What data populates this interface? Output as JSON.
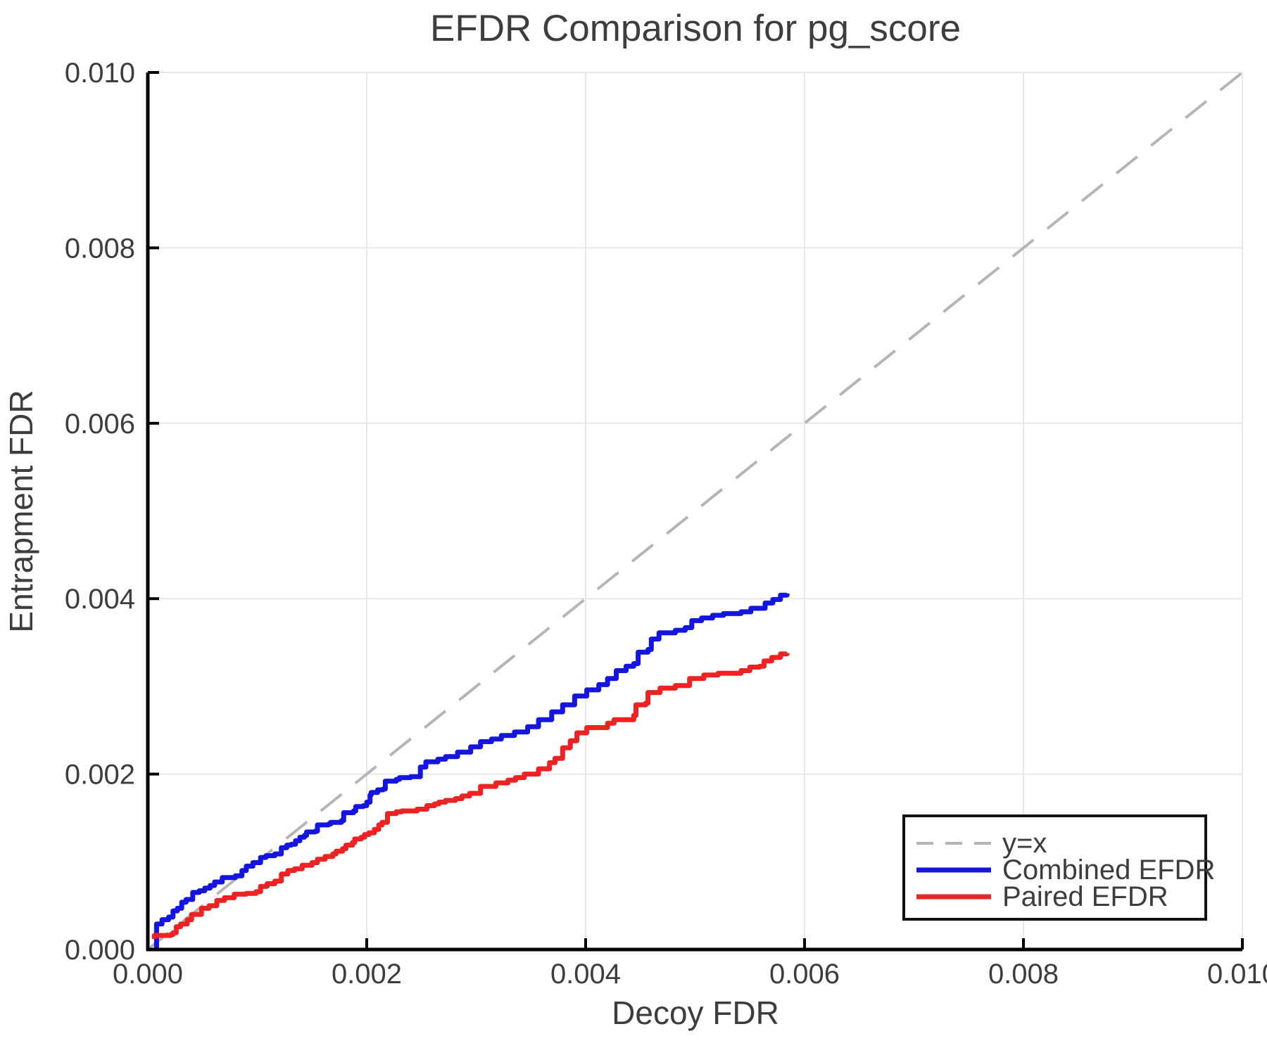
{
  "chart_data": {
    "type": "line",
    "title": "EFDR Comparison for pg_score",
    "xlabel": "Decoy FDR",
    "ylabel": "Entrapment FDR",
    "xlim": [
      0.0,
      0.01
    ],
    "ylim": [
      0.0,
      0.01
    ],
    "grid": true,
    "x_ticks": {
      "values": [
        0.0,
        0.002,
        0.004,
        0.006,
        0.008,
        0.01
      ],
      "labels": [
        "0.000",
        "0.002",
        "0.004",
        "0.006",
        "0.008",
        "0.010"
      ]
    },
    "y_ticks": {
      "values": [
        0.0,
        0.002,
        0.004,
        0.006,
        0.008,
        0.01
      ],
      "labels": [
        "0.000",
        "0.002",
        "0.004",
        "0.006",
        "0.008",
        "0.010"
      ]
    },
    "identity_line": {
      "label": "y=x",
      "color": "#b5b5b5",
      "dashed": true,
      "from": [
        0.0,
        0.0
      ],
      "to": [
        0.01,
        0.01
      ]
    },
    "legend": {
      "position": "bottom-right",
      "entries": [
        "y=x",
        "Combined EFDR",
        "Paired EFDR"
      ]
    },
    "colors": {
      "text": "#3d3d3d",
      "axis": "#000000",
      "grid": "#e8e8e8",
      "background": "#ffffff"
    },
    "series": [
      {
        "name": "Combined EFDR",
        "color": "#1515e0",
        "style": "step",
        "points": [
          [
            8e-05,
            0.0
          ],
          [
            8e-05,
            0.00029
          ],
          [
            0.00013,
            0.00034
          ],
          [
            0.00019,
            0.00037
          ],
          [
            0.00023,
            0.00044
          ],
          [
            0.00027,
            0.00047
          ],
          [
            0.00031,
            0.00054
          ],
          [
            0.00035,
            0.00057
          ],
          [
            0.00041,
            0.00065
          ],
          [
            0.00047,
            0.00067
          ],
          [
            0.00052,
            0.0007
          ],
          [
            0.00057,
            0.00073
          ],
          [
            0.00061,
            0.00077
          ],
          [
            0.00068,
            0.00082
          ],
          [
            0.0008,
            0.00084
          ],
          [
            0.00086,
            0.0009
          ],
          [
            0.0009,
            0.00095
          ],
          [
            0.00096,
            0.00099
          ],
          [
            0.00103,
            0.00105
          ],
          [
            0.00108,
            0.00107
          ],
          [
            0.00116,
            0.00109
          ],
          [
            0.00122,
            0.00116
          ],
          [
            0.00127,
            0.00119
          ],
          [
            0.00131,
            0.0012
          ],
          [
            0.00135,
            0.00124
          ],
          [
            0.00139,
            0.00128
          ],
          [
            0.00143,
            0.0013
          ],
          [
            0.00145,
            0.00134
          ],
          [
            0.00153,
            0.00135
          ],
          [
            0.00155,
            0.00142
          ],
          [
            0.00165,
            0.00143
          ],
          [
            0.00167,
            0.00145
          ],
          [
            0.00177,
            0.00147
          ],
          [
            0.00179,
            0.00156
          ],
          [
            0.00188,
            0.00158
          ],
          [
            0.0019,
            0.00163
          ],
          [
            0.00197,
            0.00164
          ],
          [
            0.002,
            0.00168
          ],
          [
            0.00203,
            0.00176
          ],
          [
            0.00204,
            0.00179
          ],
          [
            0.0021,
            0.00182
          ],
          [
            0.00215,
            0.00183
          ],
          [
            0.00217,
            0.00192
          ],
          [
            0.00227,
            0.00194
          ],
          [
            0.0023,
            0.00196
          ],
          [
            0.0024,
            0.00197
          ],
          [
            0.00249,
            0.00208
          ],
          [
            0.00254,
            0.00214
          ],
          [
            0.00265,
            0.00217
          ],
          [
            0.00272,
            0.0022
          ],
          [
            0.00283,
            0.00225
          ],
          [
            0.00295,
            0.00231
          ],
          [
            0.00304,
            0.00237
          ],
          [
            0.00314,
            0.0024
          ],
          [
            0.00323,
            0.00244
          ],
          [
            0.00335,
            0.00248
          ],
          [
            0.00347,
            0.00254
          ],
          [
            0.00357,
            0.00262
          ],
          [
            0.00369,
            0.00271
          ],
          [
            0.00379,
            0.00279
          ],
          [
            0.0039,
            0.00289
          ],
          [
            0.00401,
            0.00296
          ],
          [
            0.00412,
            0.00302
          ],
          [
            0.0042,
            0.00309
          ],
          [
            0.00428,
            0.00318
          ],
          [
            0.00437,
            0.00323
          ],
          [
            0.00444,
            0.00326
          ],
          [
            0.00448,
            0.00339
          ],
          [
            0.00457,
            0.00342
          ],
          [
            0.0046,
            0.00354
          ],
          [
            0.00467,
            0.00361
          ],
          [
            0.00482,
            0.00364
          ],
          [
            0.00491,
            0.00367
          ],
          [
            0.00497,
            0.00375
          ],
          [
            0.00506,
            0.00378
          ],
          [
            0.00516,
            0.00381
          ],
          [
            0.00526,
            0.00383
          ],
          [
            0.00542,
            0.00385
          ],
          [
            0.00551,
            0.00389
          ],
          [
            0.00564,
            0.00395
          ],
          [
            0.00571,
            0.00399
          ],
          [
            0.00578,
            0.00404
          ],
          [
            0.00584,
            0.00406
          ]
        ]
      },
      {
        "name": "Paired EFDR",
        "color": "#ee2222",
        "style": "step",
        "points": [
          [
            6e-05,
            0.00012
          ],
          [
            6e-05,
            0.00016
          ],
          [
            0.00021,
            0.00017
          ],
          [
            0.00023,
            0.00019
          ],
          [
            0.00026,
            0.00026
          ],
          [
            0.0003,
            0.00029
          ],
          [
            0.00036,
            0.00034
          ],
          [
            0.0004,
            0.0004
          ],
          [
            0.00049,
            0.00047
          ],
          [
            0.00056,
            0.0005
          ],
          [
            0.00063,
            0.00056
          ],
          [
            0.0007,
            0.00059
          ],
          [
            0.00079,
            0.00063
          ],
          [
            0.0009,
            0.00064
          ],
          [
            0.00099,
            0.00066
          ],
          [
            0.00103,
            0.00072
          ],
          [
            0.00109,
            0.00075
          ],
          [
            0.00116,
            0.00078
          ],
          [
            0.00122,
            0.00086
          ],
          [
            0.00128,
            0.0009
          ],
          [
            0.00134,
            0.00092
          ],
          [
            0.00141,
            0.00096
          ],
          [
            0.0015,
            0.00099
          ],
          [
            0.00155,
            0.00103
          ],
          [
            0.00162,
            0.00106
          ],
          [
            0.00169,
            0.00109
          ],
          [
            0.00172,
            0.00112
          ],
          [
            0.00178,
            0.00115
          ],
          [
            0.00181,
            0.00119
          ],
          [
            0.00187,
            0.00122
          ],
          [
            0.00189,
            0.00126
          ],
          [
            0.00195,
            0.00128
          ],
          [
            0.00198,
            0.00131
          ],
          [
            0.00202,
            0.00133
          ],
          [
            0.00207,
            0.00137
          ],
          [
            0.00211,
            0.00142
          ],
          [
            0.00214,
            0.00145
          ],
          [
            0.00219,
            0.00155
          ],
          [
            0.00227,
            0.00157
          ],
          [
            0.00232,
            0.00158
          ],
          [
            0.00246,
            0.0016
          ],
          [
            0.00255,
            0.00164
          ],
          [
            0.00262,
            0.00166
          ],
          [
            0.00266,
            0.00168
          ],
          [
            0.00272,
            0.0017
          ],
          [
            0.00281,
            0.00172
          ],
          [
            0.00287,
            0.00175
          ],
          [
            0.00294,
            0.00178
          ],
          [
            0.00304,
            0.00186
          ],
          [
            0.00318,
            0.0019
          ],
          [
            0.00329,
            0.00193
          ],
          [
            0.00336,
            0.00196
          ],
          [
            0.00344,
            0.002
          ],
          [
            0.00357,
            0.00206
          ],
          [
            0.00367,
            0.00213
          ],
          [
            0.00372,
            0.00218
          ],
          [
            0.00379,
            0.0023
          ],
          [
            0.00386,
            0.00238
          ],
          [
            0.00392,
            0.00247
          ],
          [
            0.00401,
            0.00253
          ],
          [
            0.0042,
            0.00258
          ],
          [
            0.00426,
            0.00262
          ],
          [
            0.00444,
            0.00267
          ],
          [
            0.00446,
            0.00279
          ],
          [
            0.00455,
            0.00281
          ],
          [
            0.00457,
            0.00293
          ],
          [
            0.00468,
            0.00298
          ],
          [
            0.00482,
            0.00301
          ],
          [
            0.00495,
            0.00309
          ],
          [
            0.00508,
            0.00313
          ],
          [
            0.00521,
            0.00315
          ],
          [
            0.00542,
            0.00318
          ],
          [
            0.0055,
            0.00322
          ],
          [
            0.00559,
            0.00323
          ],
          [
            0.00563,
            0.00329
          ],
          [
            0.0057,
            0.00333
          ],
          [
            0.00578,
            0.00337
          ],
          [
            0.00584,
            0.00338
          ]
        ]
      }
    ]
  }
}
